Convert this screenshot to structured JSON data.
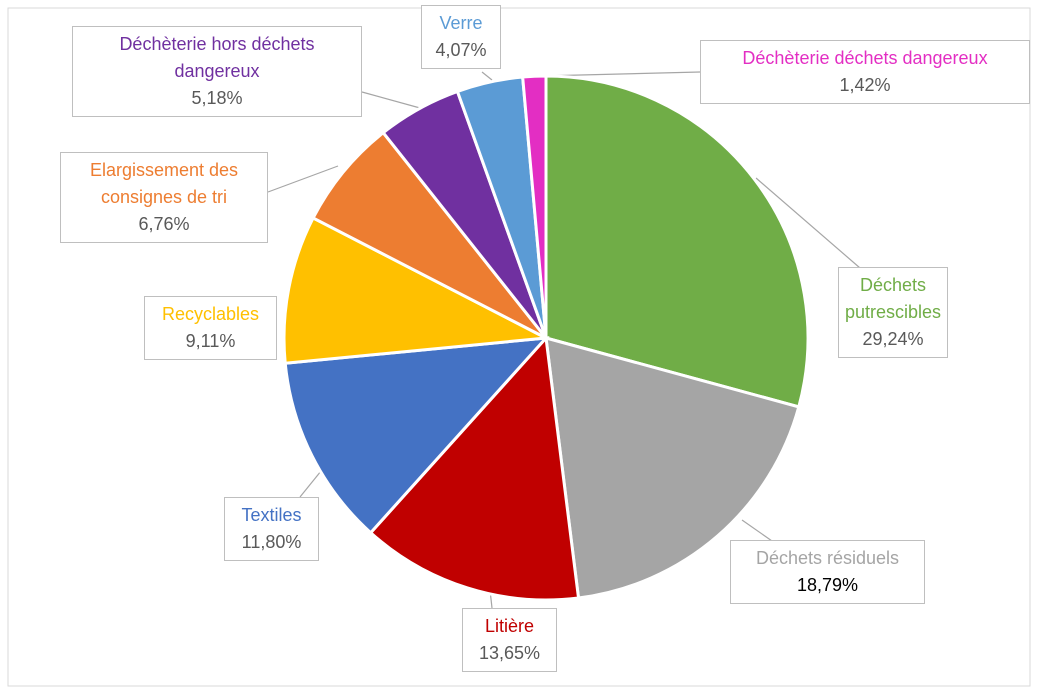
{
  "chart_data": {
    "type": "pie",
    "categories": [
      "Déchets putrescibles",
      "Déchets résiduels",
      "Litière",
      "Textiles",
      "Recyclables",
      "Elargissement des consignes de tri",
      "Déchèterie hors déchets dangereux",
      "Verre",
      "Déchèterie déchets dangereux"
    ],
    "values": [
      29.24,
      18.79,
      13.65,
      11.8,
      9.11,
      6.76,
      5.18,
      4.07,
      1.42
    ],
    "value_labels": [
      "29,24%",
      "18,79%",
      "13,65%",
      "11,80%",
      "9,11%",
      "6,76%",
      "5,18%",
      "4,07%",
      "1,42%"
    ],
    "colors": [
      "#70ad47",
      "#a5a5a5",
      "#c00000",
      "#4472c4",
      "#ffc000",
      "#ed7d31",
      "#7030a0",
      "#5b9bd5",
      "#e32ec3"
    ]
  }
}
